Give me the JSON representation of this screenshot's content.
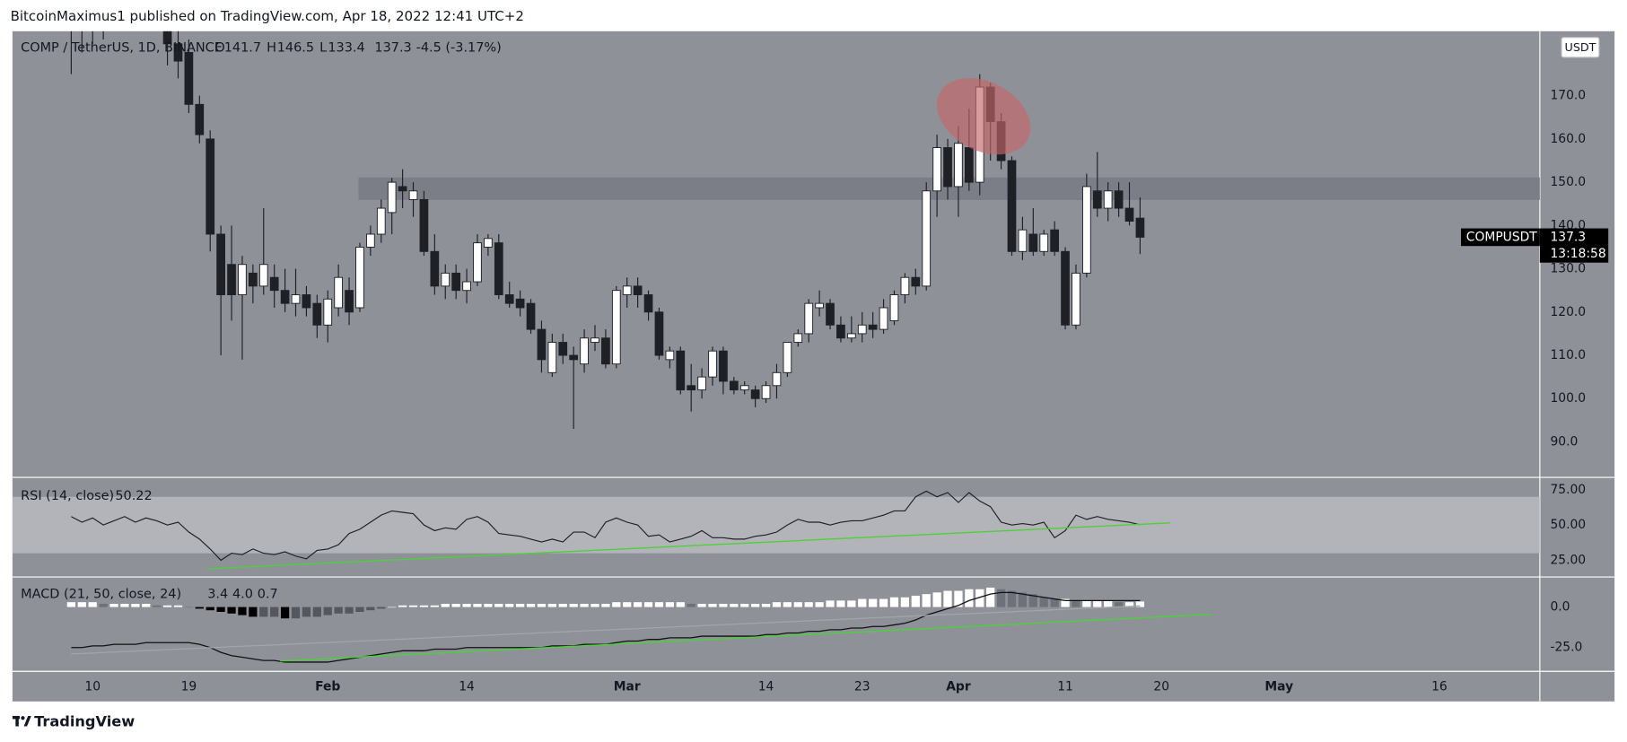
{
  "header": {
    "text": "BitcoinMaximus1 published on TradingView.com, Apr 18, 2022 12:41 UTC+2"
  },
  "footer": {
    "brand": "TradingView"
  },
  "chart_data": [
    {
      "type": "candlestick",
      "title": "COMP / TetherUS, 1D, BINANCE",
      "legend_keys": [
        "O",
        "H",
        "L"
      ],
      "change_label": "-4.5 (-3.17%)",
      "currency": "USDT",
      "symbol": "COMPUSDT",
      "countdown": "13:18:58",
      "up_color": "#ffffff",
      "down_color": "#1e2026",
      "wick_color": "#1e2026",
      "zone_color": "#6d7079",
      "zone": [
        146,
        151
      ],
      "xlim": [
        -5.5,
        137.4
      ],
      "ylim": [
        81.8,
        184.9
      ],
      "xticks": [
        {
          "value": 2,
          "label": "10"
        },
        {
          "value": 11,
          "label": "19"
        },
        {
          "value": 24,
          "label": "Feb"
        },
        {
          "value": 37,
          "label": "14"
        },
        {
          "value": 52,
          "label": "Mar"
        },
        {
          "value": 65,
          "label": "14"
        },
        {
          "value": 74,
          "label": "23"
        },
        {
          "value": 83,
          "label": "Apr"
        },
        {
          "value": 93,
          "label": "11"
        },
        {
          "value": 102,
          "label": "20"
        },
        {
          "value": 113,
          "label": "May"
        },
        {
          "value": 128,
          "label": "16"
        }
      ],
      "yticks": [
        {
          "value": 90,
          "label": "90.0"
        },
        {
          "value": 100,
          "label": "100.0"
        },
        {
          "value": 110,
          "label": "110.0"
        },
        {
          "value": 120,
          "label": "120.0"
        },
        {
          "value": 130,
          "label": "130.0"
        },
        {
          "value": 140,
          "label": "140.0"
        },
        {
          "value": 150,
          "label": "150.0"
        },
        {
          "value": 160,
          "label": "160.0"
        },
        {
          "value": 170,
          "label": "170.0"
        }
      ],
      "open": [
        190,
        185,
        188,
        186,
        190,
        192,
        188,
        190,
        191,
        187,
        182,
        180,
        168,
        160,
        138,
        131,
        124,
        129,
        126,
        128,
        125,
        122,
        124,
        122,
        117,
        121,
        125,
        121,
        135,
        138,
        143,
        149,
        146,
        146,
        134,
        126,
        129,
        125,
        127,
        135,
        136,
        124,
        123,
        122,
        116,
        106,
        113,
        110,
        108,
        113,
        114,
        108,
        124,
        126,
        124,
        120,
        109,
        111,
        103,
        102,
        105,
        111,
        104,
        102,
        102,
        100,
        103,
        106,
        113,
        115,
        121,
        122,
        117,
        114,
        115,
        117,
        116,
        118,
        124,
        128,
        126,
        148,
        158,
        149,
        158,
        150,
        172,
        164,
        155,
        134,
        138,
        134,
        139,
        134,
        117,
        129,
        148,
        144,
        148,
        144,
        141.7
      ],
      "high": [
        195,
        192,
        195,
        195,
        197,
        194,
        192,
        193,
        193,
        189,
        187,
        183,
        170,
        162,
        140,
        140,
        133,
        131,
        144,
        131,
        130,
        130,
        126,
        124,
        125,
        131,
        128,
        136,
        140,
        146,
        151,
        153,
        150,
        148,
        138,
        131,
        131,
        130,
        138,
        138,
        138,
        127,
        125,
        123,
        118,
        115,
        115,
        112,
        116,
        117,
        116,
        126,
        128,
        128,
        125,
        121,
        112,
        112,
        108,
        107,
        112,
        112,
        105,
        104,
        103,
        104,
        108,
        113,
        116,
        123,
        125,
        123,
        119,
        119,
        120,
        120,
        123,
        125,
        129,
        130,
        150,
        161,
        160,
        163,
        167,
        175,
        173,
        166,
        156,
        142,
        144,
        139,
        141,
        135,
        131,
        152,
        157,
        150,
        150,
        150,
        146.5
      ],
      "low": [
        175,
        180,
        182,
        183,
        187,
        186,
        185,
        187,
        185,
        177,
        174,
        166,
        159,
        134,
        110,
        118,
        109,
        122,
        124,
        121,
        120,
        119,
        119,
        114,
        113,
        119,
        117,
        120,
        133,
        136,
        138,
        144,
        142,
        133,
        124,
        123,
        123,
        122,
        126,
        133,
        123,
        121,
        119,
        115,
        106,
        105,
        108,
        93,
        106,
        111,
        107,
        107,
        121,
        121,
        118,
        109,
        107,
        101,
        97,
        100,
        103,
        101,
        101,
        101,
        98,
        99,
        100,
        105,
        112,
        113,
        119,
        116,
        113,
        113,
        113,
        114,
        115,
        117,
        122,
        124,
        125,
        142,
        146,
        142,
        148,
        147,
        155,
        153,
        133,
        132,
        133,
        133,
        133,
        116,
        116,
        128,
        142,
        141,
        142,
        140,
        133.4
      ],
      "close": [
        185,
        188,
        186,
        190,
        192,
        188,
        190,
        191,
        187,
        182,
        178,
        168,
        161,
        138,
        124,
        124,
        131,
        126,
        131,
        125,
        122,
        124,
        121,
        117,
        123,
        128,
        120,
        135,
        138,
        144,
        150,
        148,
        148,
        134,
        126,
        129,
        125,
        127,
        136,
        137,
        124,
        122,
        121,
        116,
        109,
        113,
        110,
        109,
        114,
        114,
        108,
        125,
        126,
        124,
        120,
        110,
        111,
        102,
        102,
        105,
        111,
        104,
        102,
        103,
        100,
        103,
        106,
        113,
        115,
        122,
        122,
        117,
        114,
        115,
        117,
        116,
        121,
        124,
        128,
        126,
        148,
        158,
        149,
        159,
        150,
        172,
        164,
        155,
        134,
        139,
        134,
        138,
        134,
        117,
        129,
        149,
        144,
        148,
        144,
        141,
        137.3
      ]
    },
    {
      "type": "line",
      "title": "RSI (14, close)",
      "color": "#1e2026",
      "band": [
        30,
        70
      ],
      "band_color": "#b3b4ba",
      "trendline": {
        "from": [
          12.75,
          19
        ],
        "to": [
          102.8,
          51.5
        ],
        "color": "#4cd137"
      },
      "ylim": [
        13.2,
        83.8
      ],
      "yticks": [
        {
          "value": 25,
          "label": "25.00"
        },
        {
          "value": 50,
          "label": "50.00"
        },
        {
          "value": 75,
          "label": "75.00"
        }
      ],
      "values": [
        56,
        52,
        55,
        50,
        53,
        56,
        52,
        55,
        53,
        50,
        52,
        45,
        40,
        33,
        25,
        30,
        29,
        33,
        30,
        29,
        31,
        28,
        26,
        32,
        33,
        36,
        44,
        47,
        52,
        57,
        60,
        59,
        58,
        50,
        46,
        48,
        47,
        54,
        56,
        52,
        44,
        43,
        42,
        40,
        38,
        40,
        38,
        45,
        45,
        41,
        52,
        55,
        52,
        50,
        42,
        43,
        38,
        40,
        42,
        46,
        41,
        41,
        40,
        40,
        42,
        43,
        45,
        50,
        54,
        52,
        52,
        50,
        52,
        53,
        53,
        55,
        57,
        60,
        60,
        70,
        74,
        70,
        73,
        66,
        73,
        67,
        63,
        52,
        50,
        51,
        50,
        52,
        41,
        46,
        57,
        54,
        56,
        54,
        53,
        52,
        50.22
      ]
    },
    {
      "type": "macd",
      "title": "MACD (21, 50, close, 24)",
      "trendline": {
        "from": [
          19.55,
          -33.3
        ],
        "to": [
          106.7,
          -4.5
        ],
        "color": "#4cd137"
      },
      "ylim": [
        -39.7,
        18.6
      ],
      "yticks": [
        {
          "value": 0,
          "label": "0.0"
        },
        {
          "value": -25,
          "label": "-25.0"
        }
      ],
      "series": [
        {
          "type": "bar",
          "colors": {
            "grow_above": "#ffffff",
            "fall_above": "#6f717a",
            "grow_below": "#55575e",
            "fall_below": "#000000"
          },
          "values": [
            3,
            3,
            3,
            2,
            2,
            2,
            2,
            2,
            1,
            1,
            1,
            0,
            -1,
            -2,
            -3,
            -4,
            -5,
            -6,
            -6,
            -6,
            -7,
            -7,
            -6,
            -6,
            -5,
            -4,
            -4,
            -3,
            -2,
            -1,
            0,
            1,
            1,
            1,
            1,
            2,
            2,
            2,
            2,
            2,
            2,
            2,
            2,
            2,
            2,
            2,
            2,
            2,
            2,
            2,
            2,
            3,
            3,
            3,
            3,
            3,
            3,
            3,
            2,
            2,
            2,
            2,
            2,
            2,
            2,
            2,
            3,
            3,
            3,
            3,
            3,
            4,
            4,
            4,
            5,
            5,
            5,
            6,
            6,
            7,
            8,
            9,
            10,
            10,
            11,
            11,
            12,
            11,
            10,
            9,
            8,
            6,
            5,
            5,
            4,
            4,
            4,
            4,
            3,
            3,
            3.4
          ]
        },
        {
          "type": "line",
          "color": "#111111",
          "last_value_label": "4.0",
          "values": [
            -25,
            -25,
            -24,
            -24,
            -23,
            -23,
            -23,
            -22,
            -22,
            -22,
            -22,
            -22,
            -23,
            -25,
            -28,
            -30,
            -31,
            -32,
            -33,
            -33,
            -34,
            -34,
            -34,
            -34,
            -34,
            -33,
            -32,
            -31,
            -30,
            -29,
            -28,
            -27,
            -27,
            -27,
            -26,
            -26,
            -26,
            -25,
            -25,
            -25,
            -25,
            -25,
            -25,
            -25,
            -25,
            -24,
            -24,
            -24,
            -23,
            -23,
            -23,
            -22,
            -21,
            -21,
            -20,
            -20,
            -19,
            -19,
            -19,
            -18,
            -18,
            -18,
            -18,
            -18,
            -18,
            -17,
            -17,
            -16,
            -16,
            -15,
            -15,
            -14,
            -14,
            -13,
            -13,
            -12,
            -12,
            -11,
            -10,
            -8,
            -5,
            -3,
            -1,
            1,
            4,
            6,
            8,
            9,
            9,
            8,
            7,
            6,
            5,
            4,
            4,
            4,
            4,
            4,
            4,
            4,
            4
          ]
        },
        {
          "type": "line",
          "color": "#a3a5ab",
          "values": [
            -29,
            -28.7,
            -28.4,
            -28.1,
            -27.8,
            -27.5,
            -27.2,
            -26.9,
            -26.6,
            -26.3,
            -26,
            -25.7,
            -25.4,
            -25.1,
            -24.8,
            -24.5,
            -24.2,
            -23.9,
            -23.7,
            -23.4,
            -23.1,
            -22.8,
            -22.5,
            -22.2,
            -21.9,
            -21.6,
            -21.3,
            -21,
            -20.7,
            -20.4,
            -20.1,
            -19.8,
            -19.5,
            -19.2,
            -18.9,
            -18.6,
            -18.3,
            -18,
            -17.7,
            -17.4,
            -17.1,
            -16.8,
            -16.5,
            -16.2,
            -15.9,
            -15.6,
            -15.3,
            -15,
            -14.7,
            -14.4,
            -14.2,
            -13.9,
            -13.6,
            -13.3,
            -13,
            -12.7,
            -12.4,
            -12.1,
            -11.8,
            -11.5,
            -11.2,
            -10.9,
            -10.6,
            -10.3,
            -10,
            -9.7,
            -9.4,
            -9.1,
            -8.8,
            -8.5,
            -8.2,
            -7.9,
            -7.6,
            -7.3,
            -7,
            -6.7,
            -6.4,
            -6.1,
            -5.8,
            -5.5,
            -5.2,
            -4.9,
            -4.6,
            -4.4,
            -4.1,
            -3.8,
            -3.5,
            -3.2,
            -2.9,
            -2.6,
            -2.3,
            -2,
            -1.7,
            -1.4,
            -1.1,
            -0.8,
            -0.5,
            -0.2,
            0.1,
            0.4,
            0.7
          ]
        }
      ]
    }
  ]
}
